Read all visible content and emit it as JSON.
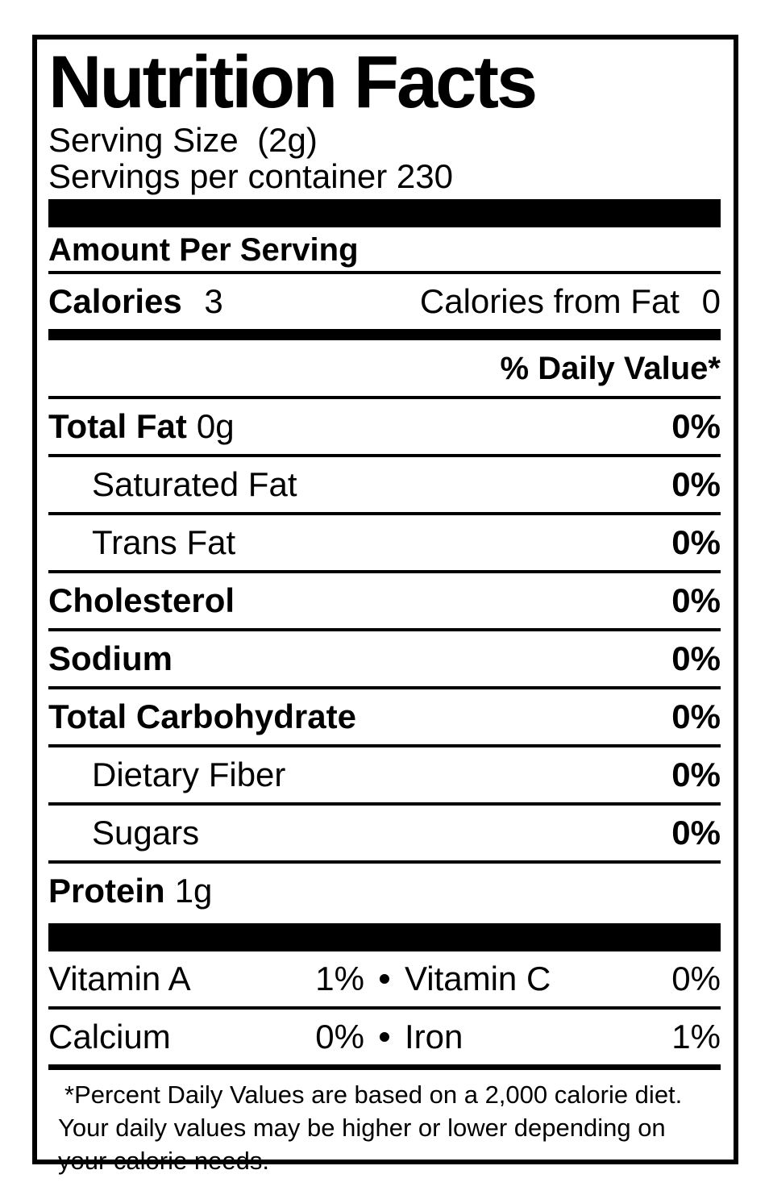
{
  "label": {
    "title": "Nutrition Facts",
    "serving_size": "Serving Size  (2g)",
    "servings_per_container": "Servings per container 230",
    "amount_per_serving": "Amount Per Serving",
    "calories": {
      "label": "Calories",
      "value": "3"
    },
    "calories_from_fat": {
      "label": "Calories from Fat",
      "value": "0"
    },
    "daily_value_header": "% Daily Value*",
    "nutrients": [
      {
        "name": "Total Fat",
        "amount": "0g",
        "dv": "0%"
      },
      {
        "name": "Saturated Fat",
        "amount": "",
        "dv": "0%"
      },
      {
        "name": "Trans Fat",
        "amount": "",
        "dv": "0%"
      },
      {
        "name": "Cholesterol",
        "amount": "",
        "dv": "0%"
      },
      {
        "name": "Sodium",
        "amount": "",
        "dv": "0%"
      },
      {
        "name": "Total Carbohydrate",
        "amount": "",
        "dv": "0%"
      },
      {
        "name": "Dietary Fiber",
        "amount": "",
        "dv": "0%"
      },
      {
        "name": "Sugars",
        "amount": "",
        "dv": "0%"
      }
    ],
    "protein": {
      "name": "Protein",
      "amount": "1g"
    },
    "bullet": "•",
    "micronutrients": [
      {
        "left_name": "Vitamin A",
        "left_value": "1%",
        "right_name": "Vitamin C",
        "right_value": "0%"
      },
      {
        "left_name": "Calcium",
        "left_value": "0%",
        "right_name": "Iron",
        "right_value": "1%"
      }
    ],
    "footnote": "*Percent Daily Values are based on a 2,000 calorie diet. Your daily values may be higher or lower depending on your calorie needs.",
    "colors": {
      "ink": "#000000",
      "paper": "#ffffff"
    }
  }
}
